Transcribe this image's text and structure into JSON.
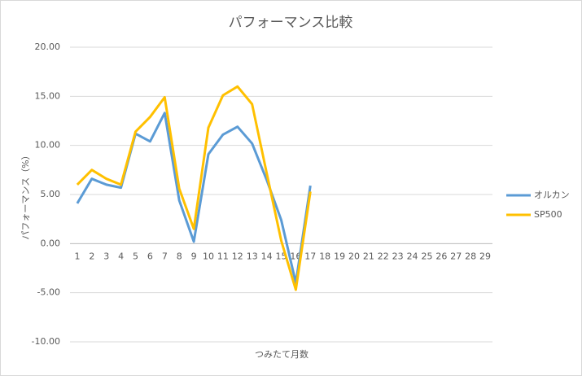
{
  "chart_data": {
    "type": "line",
    "title": "パフォーマンス比較",
    "x_label": "つみたて月数",
    "y_label": "パフォーマンス（%）",
    "categories": [
      "1",
      "2",
      "3",
      "4",
      "5",
      "6",
      "7",
      "8",
      "9",
      "10",
      "11",
      "12",
      "13",
      "14",
      "15",
      "16",
      "17",
      "18",
      "19",
      "20",
      "21",
      "22",
      "23",
      "24",
      "25",
      "26",
      "27",
      "28",
      "29"
    ],
    "series": [
      {
        "name": "オルカン",
        "color": "#5b9bd5",
        "values": [
          4.1,
          6.6,
          6.0,
          5.7,
          11.2,
          10.4,
          13.3,
          4.4,
          0.2,
          9.1,
          11.1,
          11.9,
          10.2,
          6.5,
          2.4,
          -4.0,
          5.9,
          null,
          null,
          null,
          null,
          null,
          null,
          null,
          null,
          null,
          null,
          null,
          null
        ]
      },
      {
        "name": "SP500",
        "color": "#ffc000",
        "values": [
          6.0,
          7.5,
          6.6,
          6.0,
          11.4,
          12.9,
          14.9,
          5.6,
          1.5,
          11.8,
          15.1,
          16.0,
          14.2,
          7.2,
          0.3,
          -4.7,
          5.3,
          null,
          null,
          null,
          null,
          null,
          null,
          null,
          null,
          null,
          null,
          null,
          null
        ]
      }
    ],
    "ylim": [
      -10,
      20
    ],
    "yticks": [
      {
        "value": -10,
        "label": "-10.00"
      },
      {
        "value": -5,
        "label": "-5.00"
      },
      {
        "value": 0,
        "label": "0.00"
      },
      {
        "value": 5,
        "label": "5.00"
      },
      {
        "value": 10,
        "label": "10.00"
      },
      {
        "value": 15,
        "label": "15.00"
      },
      {
        "value": 20,
        "label": "20.00"
      }
    ],
    "grid": true,
    "legend": "right"
  }
}
